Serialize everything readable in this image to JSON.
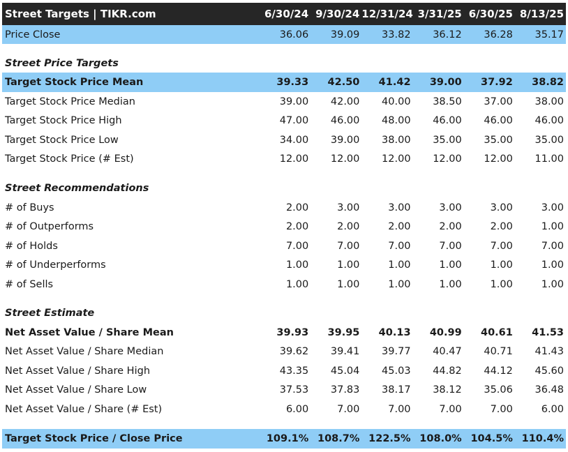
{
  "header": {
    "title": "Street Targets | TIKR.com",
    "columns": [
      "6/30/24",
      "9/30/24",
      "12/31/24",
      "3/31/25",
      "6/30/25",
      "8/13/25"
    ]
  },
  "rows": [
    {
      "label": "Price Close",
      "values": [
        "36.06",
        "39.09",
        "33.82",
        "36.12",
        "36.28",
        "35.17"
      ]
    },
    {
      "label": "Street Price Targets",
      "values": []
    },
    {
      "label": "Target Stock Price Mean",
      "values": [
        "39.33",
        "42.50",
        "41.42",
        "39.00",
        "37.92",
        "38.82"
      ]
    },
    {
      "label": "Target Stock Price Median",
      "values": [
        "39.00",
        "42.00",
        "40.00",
        "38.50",
        "37.00",
        "38.00"
      ]
    },
    {
      "label": "Target Stock Price High",
      "values": [
        "47.00",
        "46.00",
        "48.00",
        "46.00",
        "46.00",
        "46.00"
      ]
    },
    {
      "label": "Target Stock Price Low",
      "values": [
        "34.00",
        "39.00",
        "38.00",
        "35.00",
        "35.00",
        "35.00"
      ]
    },
    {
      "label": "Target Stock Price (# Est)",
      "values": [
        "12.00",
        "12.00",
        "12.00",
        "12.00",
        "12.00",
        "11.00"
      ]
    },
    {
      "label": "Street Recommendations",
      "values": []
    },
    {
      "label": "# of Buys",
      "values": [
        "2.00",
        "3.00",
        "3.00",
        "3.00",
        "3.00",
        "3.00"
      ]
    },
    {
      "label": "# of Outperforms",
      "values": [
        "2.00",
        "2.00",
        "2.00",
        "2.00",
        "2.00",
        "1.00"
      ]
    },
    {
      "label": "# of Holds",
      "values": [
        "7.00",
        "7.00",
        "7.00",
        "7.00",
        "7.00",
        "7.00"
      ]
    },
    {
      "label": "# of Underperforms",
      "values": [
        "1.00",
        "1.00",
        "1.00",
        "1.00",
        "1.00",
        "1.00"
      ]
    },
    {
      "label": "# of Sells",
      "values": [
        "1.00",
        "1.00",
        "1.00",
        "1.00",
        "1.00",
        "1.00"
      ]
    },
    {
      "label": "Street Estimate",
      "values": []
    },
    {
      "label": "Net Asset Value / Share Mean",
      "values": [
        "39.93",
        "39.95",
        "40.13",
        "40.99",
        "40.61",
        "41.53"
      ]
    },
    {
      "label": "Net Asset Value / Share Median",
      "values": [
        "39.62",
        "39.41",
        "39.77",
        "40.47",
        "40.71",
        "41.43"
      ]
    },
    {
      "label": "Net Asset Value / Share High",
      "values": [
        "43.35",
        "45.04",
        "45.03",
        "44.82",
        "44.12",
        "45.60"
      ]
    },
    {
      "label": "Net Asset Value / Share Low",
      "values": [
        "37.53",
        "37.83",
        "38.17",
        "38.12",
        "35.06",
        "36.48"
      ]
    },
    {
      "label": "Net Asset Value / Share (# Est)",
      "values": [
        "6.00",
        "7.00",
        "7.00",
        "7.00",
        "7.00",
        "6.00"
      ]
    },
    {
      "label": "Target Stock Price / Close Price",
      "values": [
        "109.1%",
        "108.7%",
        "122.5%",
        "108.0%",
        "104.5%",
        "110.4%"
      ]
    }
  ],
  "colors": {
    "header_bg": "#262626",
    "highlight_bg": "#8fcdf6"
  }
}
